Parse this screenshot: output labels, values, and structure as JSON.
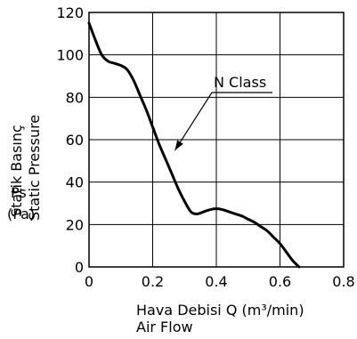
{
  "chart_data": {
    "type": "line",
    "title": "",
    "xlabel": "Hava Debisi Q (m³/min)",
    "xlabel_line2": "Air Flow",
    "ylabel_line1": "Statik Basınç",
    "ylabel_line2": "Static Pressure",
    "ylabel_symbol": "Ps",
    "ylabel_unit": "(Pa)",
    "xlim": [
      0,
      0.8
    ],
    "ylim": [
      0,
      120
    ],
    "x_ticks": [
      0,
      0.2,
      0.4,
      0.6,
      0.8
    ],
    "x_tick_labels": [
      "0",
      "0.2",
      "0.4",
      "0.6",
      "0.8"
    ],
    "y_ticks": [
      0,
      20,
      40,
      60,
      80,
      100,
      120
    ],
    "y_tick_labels": [
      "0",
      "20",
      "40",
      "60",
      "80",
      "100",
      "120"
    ],
    "grid": true,
    "series": [
      {
        "name": "N Class",
        "color": "#000000",
        "x": [
          0,
          0.02,
          0.04,
          0.06,
          0.08,
          0.1,
          0.12,
          0.14,
          0.16,
          0.18,
          0.2,
          0.22,
          0.24,
          0.26,
          0.28,
          0.3,
          0.32,
          0.34,
          0.36,
          0.38,
          0.4,
          0.42,
          0.44,
          0.46,
          0.48,
          0.5,
          0.52,
          0.54,
          0.56,
          0.58,
          0.6,
          0.62,
          0.64,
          0.66
        ],
        "y": [
          115,
          107,
          100,
          97,
          96,
          95,
          93,
          88,
          81,
          74,
          66,
          58,
          51,
          44,
          37,
          31,
          26,
          25,
          26,
          27,
          27.5,
          27,
          26,
          25,
          24,
          22.5,
          21,
          19,
          17,
          14,
          11,
          7,
          3,
          0
        ]
      }
    ],
    "annotation": {
      "text": "N Class",
      "target_x": 0.27,
      "target_y": 55
    }
  }
}
